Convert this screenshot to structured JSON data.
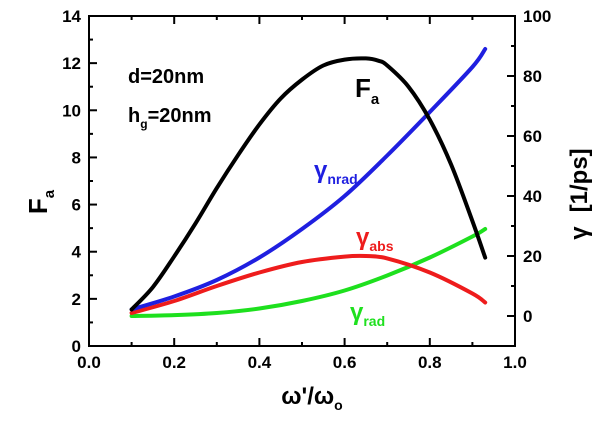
{
  "chart_data": {
    "type": "line",
    "title": "",
    "xlabel": {
      "main": "ω'/ω",
      "sub": "o"
    },
    "ylabel_left": {
      "main": "F",
      "sub": "a"
    },
    "ylabel_right": {
      "main": "γ",
      "bracket": "[1/ps]"
    },
    "xlim": [
      0.0,
      1.0
    ],
    "ylim_left": [
      0,
      14
    ],
    "ylim_right": [
      -10,
      100
    ],
    "x_ticks": [
      "0.0",
      "0.2",
      "0.4",
      "0.6",
      "0.8",
      "1.0"
    ],
    "y_left_ticks": [
      "0",
      "2",
      "4",
      "6",
      "8",
      "10",
      "12",
      "14"
    ],
    "y_right_ticks": [
      "0",
      "20",
      "40",
      "60",
      "80",
      "100"
    ],
    "grid": false,
    "annotations": {
      "d": "d=20nm",
      "hg_main": "h",
      "hg_sub": "g",
      "hg_rest": "=20nm"
    },
    "series": [
      {
        "name": "F_a",
        "label_main": "F",
        "label_sub": "a",
        "axis": "left",
        "color": "#000000",
        "x": [
          0.1,
          0.15,
          0.2,
          0.25,
          0.3,
          0.35,
          0.4,
          0.45,
          0.5,
          0.55,
          0.6,
          0.65,
          0.68,
          0.7,
          0.75,
          0.8,
          0.85,
          0.9,
          0.93
        ],
        "y": [
          1.55,
          2.5,
          3.8,
          5.2,
          6.7,
          8.1,
          9.4,
          10.5,
          11.3,
          11.9,
          12.15,
          12.2,
          12.1,
          11.9,
          11.0,
          9.6,
          7.7,
          5.3,
          3.75
        ]
      },
      {
        "name": "γ_nrad",
        "label_main": "γ",
        "label_sub": "nrad",
        "axis": "right",
        "color": "#1f1fe0",
        "x": [
          0.1,
          0.2,
          0.3,
          0.4,
          0.5,
          0.6,
          0.7,
          0.8,
          0.9,
          0.93
        ],
        "y": [
          2.2,
          6.5,
          12.0,
          19.5,
          29.0,
          40.0,
          53.5,
          68.0,
          83.0,
          89.0
        ]
      },
      {
        "name": "γ_abs",
        "label_main": "γ",
        "label_sub": "abs",
        "axis": "right",
        "color": "#ee1c1c",
        "x": [
          0.1,
          0.2,
          0.3,
          0.4,
          0.5,
          0.6,
          0.65,
          0.7,
          0.8,
          0.9,
          0.93
        ],
        "y": [
          1.0,
          5.0,
          10.0,
          14.5,
          18.0,
          19.8,
          20.0,
          19.2,
          14.5,
          7.5,
          4.5
        ]
      },
      {
        "name": "γ_rad",
        "label_main": "γ",
        "label_sub": "rad",
        "axis": "right",
        "color": "#1ee01e",
        "x": [
          0.1,
          0.2,
          0.3,
          0.4,
          0.5,
          0.6,
          0.7,
          0.8,
          0.9,
          0.93
        ],
        "y": [
          0.0,
          0.3,
          1.0,
          2.5,
          5.0,
          8.5,
          13.5,
          19.5,
          26.5,
          29.0
        ]
      }
    ]
  }
}
